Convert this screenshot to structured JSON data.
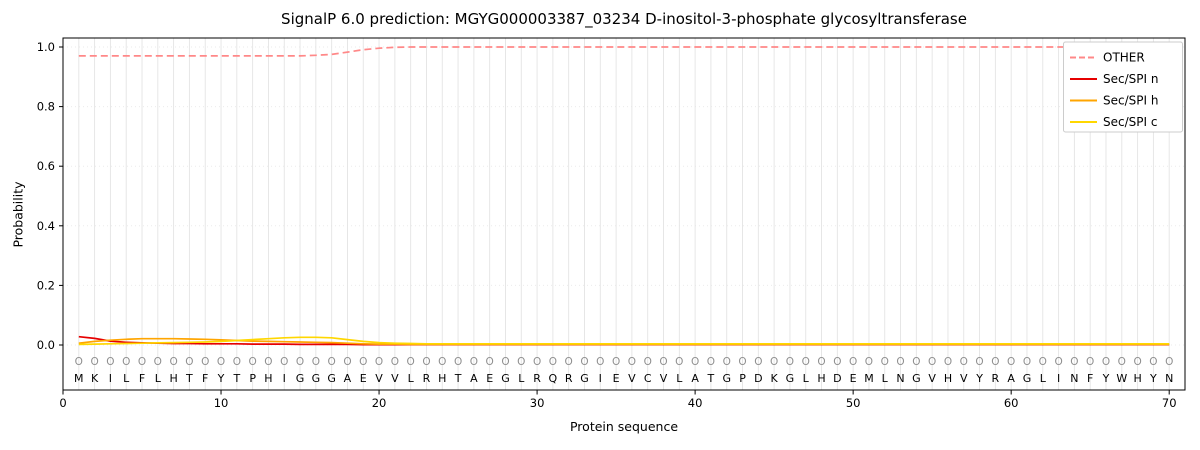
{
  "chart_data": {
    "type": "line",
    "title": "SignalP 6.0 prediction: MGYG000003387_03234 D-inositol-3-phosphate glycosyltransferase",
    "xlabel": "Protein sequence",
    "ylabel": "Probability",
    "x_ticks": [
      0,
      10,
      20,
      30,
      40,
      50,
      60,
      70
    ],
    "y_ticks": [
      0.0,
      0.2,
      0.4,
      0.6,
      0.8,
      1.0
    ],
    "ylim": [
      0,
      1.0
    ],
    "grid": {
      "vertical_per_residue": true,
      "horizontal_dotted": true
    },
    "legend_position": "upper right",
    "sequence": "MKILFLHTFYTPHIGGGAEVVLRHTAEGLRQRGIEVCVLATGPDKGLHDEMLNGVHVYRAGLINFYWHYN",
    "pred_labels": "OOOOOOOOOOOOOOOOOOOOOOOOOOOOOOOOOOOOOOOOOOOOOOOOOOOOOOOOOOOOOOOOOOOOOO",
    "series": [
      {
        "name": "OTHER",
        "color": "#ff8888",
        "dash": true,
        "values": [
          0.97,
          0.97,
          0.97,
          0.97,
          0.97,
          0.97,
          0.97,
          0.97,
          0.97,
          0.97,
          0.97,
          0.97,
          0.97,
          0.97,
          0.97,
          0.972,
          0.975,
          0.983,
          0.991,
          0.996,
          0.999,
          1.0,
          1.0,
          1.0,
          1.0,
          1.0,
          1.0,
          1.0,
          1.0,
          1.0,
          1.0,
          1.0,
          1.0,
          1.0,
          1.0,
          1.0,
          1.0,
          1.0,
          1.0,
          1.0,
          1.0,
          1.0,
          1.0,
          1.0,
          1.0,
          1.0,
          1.0,
          1.0,
          1.0,
          1.0,
          1.0,
          1.0,
          1.0,
          1.0,
          1.0,
          1.0,
          1.0,
          1.0,
          1.0,
          1.0,
          1.0,
          1.0,
          1.0,
          1.0,
          1.0,
          1.0,
          1.0,
          1.0,
          1.0,
          1.0
        ]
      },
      {
        "name": "Sec/SPI n",
        "color": "#e60000",
        "dash": false,
        "values": [
          0.028,
          0.022,
          0.013,
          0.009,
          0.007,
          0.006,
          0.005,
          0.005,
          0.004,
          0.004,
          0.004,
          0.003,
          0.003,
          0.003,
          0.002,
          0.002,
          0.002,
          0.002,
          0.001,
          0.001,
          0.001,
          0.001,
          0.001,
          0.001,
          0.001,
          0.001,
          0.001,
          0.001,
          0.001,
          0.001,
          0.001,
          0.001,
          0.001,
          0.001,
          0.001,
          0.001,
          0.001,
          0.001,
          0.001,
          0.001,
          0.001,
          0.001,
          0.001,
          0.001,
          0.001,
          0.001,
          0.001,
          0.001,
          0.001,
          0.001,
          0.001,
          0.001,
          0.001,
          0.001,
          0.001,
          0.001,
          0.001,
          0.001,
          0.001,
          0.001,
          0.001,
          0.001,
          0.001,
          0.001,
          0.001,
          0.001,
          0.001,
          0.001,
          0.001,
          0.001
        ]
      },
      {
        "name": "Sec/SPI h",
        "color": "#ffa500",
        "dash": false,
        "values": [
          0.006,
          0.012,
          0.016,
          0.019,
          0.021,
          0.021,
          0.021,
          0.02,
          0.019,
          0.017,
          0.015,
          0.013,
          0.012,
          0.011,
          0.01,
          0.009,
          0.008,
          0.006,
          0.004,
          0.003,
          0.003,
          0.002,
          0.002,
          0.002,
          0.002,
          0.002,
          0.002,
          0.002,
          0.002,
          0.002,
          0.002,
          0.002,
          0.002,
          0.002,
          0.002,
          0.002,
          0.002,
          0.002,
          0.002,
          0.002,
          0.002,
          0.002,
          0.002,
          0.002,
          0.002,
          0.002,
          0.002,
          0.002,
          0.002,
          0.002,
          0.002,
          0.002,
          0.002,
          0.002,
          0.002,
          0.002,
          0.002,
          0.002,
          0.002,
          0.002,
          0.002,
          0.002,
          0.002,
          0.002,
          0.002,
          0.002,
          0.002,
          0.002,
          0.002,
          0.002
        ]
      },
      {
        "name": "Sec/SPI c",
        "color": "#ffd700",
        "dash": false,
        "values": [
          0.002,
          0.003,
          0.004,
          0.005,
          0.006,
          0.007,
          0.008,
          0.009,
          0.01,
          0.012,
          0.015,
          0.018,
          0.021,
          0.024,
          0.026,
          0.026,
          0.024,
          0.018,
          0.012,
          0.008,
          0.006,
          0.005,
          0.004,
          0.004,
          0.004,
          0.004,
          0.004,
          0.004,
          0.004,
          0.004,
          0.004,
          0.004,
          0.004,
          0.004,
          0.004,
          0.004,
          0.004,
          0.004,
          0.004,
          0.004,
          0.004,
          0.004,
          0.004,
          0.004,
          0.004,
          0.004,
          0.004,
          0.004,
          0.004,
          0.004,
          0.004,
          0.004,
          0.004,
          0.004,
          0.004,
          0.004,
          0.004,
          0.004,
          0.004,
          0.004,
          0.004,
          0.004,
          0.004,
          0.004,
          0.004,
          0.004,
          0.004,
          0.004,
          0.004,
          0.004
        ]
      }
    ]
  }
}
